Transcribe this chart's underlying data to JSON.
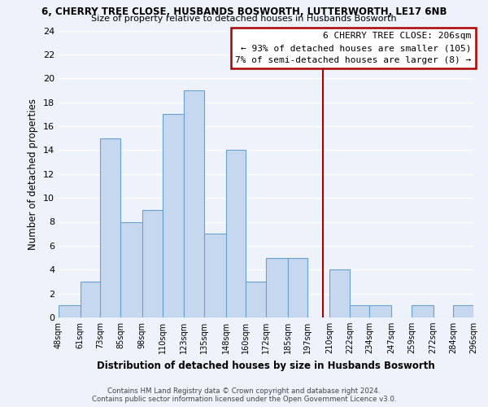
{
  "title": "6, CHERRY TREE CLOSE, HUSBANDS BOSWORTH, LUTTERWORTH, LE17 6NB",
  "subtitle": "Size of property relative to detached houses in Husbands Bosworth",
  "xlabel": "Distribution of detached houses by size in Husbands Bosworth",
  "ylabel": "Number of detached properties",
  "bin_edges": [
    48,
    61,
    73,
    85,
    98,
    110,
    123,
    135,
    148,
    160,
    172,
    185,
    197,
    210,
    222,
    234,
    247,
    259,
    272,
    284,
    296
  ],
  "bar_heights": [
    1,
    3,
    15,
    8,
    9,
    17,
    19,
    7,
    14,
    3,
    5,
    5,
    0,
    4,
    1,
    1,
    0,
    1,
    0,
    1
  ],
  "bar_color": "#c5d8f0",
  "bar_edge_color": "#6aa0cc",
  "property_line_x": 206,
  "property_line_color": "#aa0000",
  "annotation_title": "6 CHERRY TREE CLOSE: 206sqm",
  "annotation_line1": "← 93% of detached houses are smaller (105)",
  "annotation_line2": "7% of semi-detached houses are larger (8) →",
  "annotation_box_color": "#aa0000",
  "ylim": [
    0,
    24
  ],
  "yticks": [
    0,
    2,
    4,
    6,
    8,
    10,
    12,
    14,
    16,
    18,
    20,
    22,
    24
  ],
  "tick_labels": [
    "48sqm",
    "61sqm",
    "73sqm",
    "85sqm",
    "98sqm",
    "110sqm",
    "123sqm",
    "135sqm",
    "148sqm",
    "160sqm",
    "172sqm",
    "185sqm",
    "197sqm",
    "210sqm",
    "222sqm",
    "234sqm",
    "247sqm",
    "259sqm",
    "272sqm",
    "284sqm",
    "296sqm"
  ],
  "footer_line1": "Contains HM Land Registry data © Crown copyright and database right 2024.",
  "footer_line2": "Contains public sector information licensed under the Open Government Licence v3.0.",
  "background_color": "#eef2fa",
  "grid_color": "#ffffff"
}
